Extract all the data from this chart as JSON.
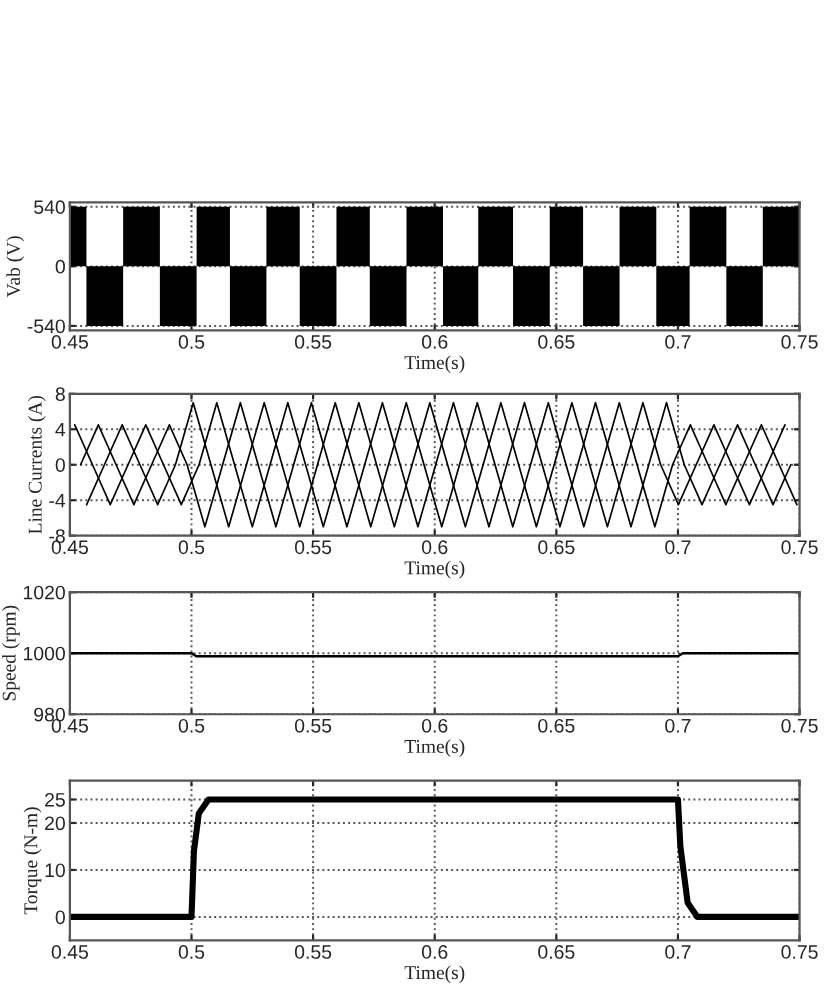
{
  "chart_data": [
    {
      "type": "area",
      "ylabel": "Vab (V)",
      "xlabel": "Time(s)",
      "xlim": [
        0.45,
        0.75
      ],
      "ylim": [
        -580,
        580
      ],
      "xticks": [
        0.45,
        0.5,
        0.55,
        0.6,
        0.65,
        0.7,
        0.75
      ],
      "yticks": [
        -540,
        0,
        540
      ],
      "grid": true,
      "series": [
        {
          "color": "#000000",
          "x": [
            0.45,
            0.4568,
            0.4568,
            0.4719,
            0.4719,
            0.487,
            0.487,
            0.5021,
            0.5021,
            0.5158,
            0.5158,
            0.5308,
            0.5308,
            0.5445,
            0.5445,
            0.5596,
            0.5596,
            0.5733,
            0.5733,
            0.5884,
            0.5884,
            0.6034,
            0.6034,
            0.6179,
            0.6179,
            0.6322,
            0.6322,
            0.6473,
            0.6473,
            0.661,
            0.661,
            0.676,
            0.676,
            0.6911,
            0.6911,
            0.7048,
            0.7048,
            0.7199,
            0.7199,
            0.7349,
            0.7349,
            0.75
          ],
          "values": [
            540,
            540,
            -540,
            -540,
            540,
            540,
            -540,
            -540,
            540,
            540,
            -540,
            -540,
            540,
            540,
            -540,
            -540,
            540,
            540,
            -540,
            -540,
            540,
            540,
            -540,
            -540,
            540,
            540,
            -540,
            -540,
            540,
            540,
            -540,
            -540,
            540,
            540,
            -540,
            -540,
            540,
            540,
            -540,
            -540,
            540,
            540
          ]
        }
      ]
    },
    {
      "type": "line",
      "ylabel": "Line Currents (A)",
      "xlabel": "Time(s)",
      "xlim": [
        0.45,
        0.75
      ],
      "ylim": [
        -8,
        8
      ],
      "xticks": [
        0.45,
        0.5,
        0.55,
        0.6,
        0.65,
        0.7,
        0.75
      ],
      "yticks": [
        -8,
        -4,
        0,
        4,
        8
      ],
      "grid": true,
      "series": [
        {
          "color": "#000000",
          "x": [
            0.452,
            0.4593,
            0.4666,
            0.4739,
            0.4812,
            0.4885,
            0.4958,
            0.5031,
            0.5104,
            0.5177,
            0.525,
            0.5323,
            0.5396,
            0.5469,
            0.5542,
            0.5615,
            0.5688,
            0.5761,
            0.5834,
            0.5907,
            0.598,
            0.6053,
            0.6126,
            0.6199,
            0.6272,
            0.6345,
            0.6418,
            0.6491,
            0.6564,
            0.6637,
            0.671,
            0.6783,
            0.6856,
            0.6929,
            0.7002,
            0.7075,
            0.7148,
            0.7221,
            0.7294,
            0.7367,
            0.744
          ],
          "values": [
            4.5,
            0,
            -4.5,
            0,
            4.5,
            0,
            -4.5,
            0,
            7,
            0,
            -7,
            0,
            7,
            0,
            -7,
            0,
            7,
            0,
            -7,
            0,
            7,
            0,
            -7,
            0,
            7,
            0,
            -7,
            0,
            7,
            0,
            -7,
            0,
            7,
            0,
            -4.5,
            0,
            4.5,
            0,
            -4.5,
            0,
            4.5
          ]
        },
        {
          "color": "#000000",
          "x": [
            0.4544,
            0.4617,
            0.469,
            0.4763,
            0.4836,
            0.4909,
            0.4982,
            0.5055,
            0.5128,
            0.5201,
            0.5274,
            0.5347,
            0.542,
            0.5493,
            0.5566,
            0.5639,
            0.5712,
            0.5785,
            0.5858,
            0.5931,
            0.6004,
            0.6077,
            0.615,
            0.6223,
            0.6296,
            0.6369,
            0.6442,
            0.6515,
            0.6588,
            0.6661,
            0.6734,
            0.6807,
            0.688,
            0.6953,
            0.7026,
            0.7099,
            0.7172,
            0.7245,
            0.7318,
            0.7391,
            0.7464
          ],
          "values": [
            0,
            4.5,
            0,
            -4.5,
            0,
            4.5,
            0,
            -7,
            0,
            7,
            0,
            -7,
            0,
            7,
            0,
            -7,
            0,
            7,
            0,
            -7,
            0,
            7,
            0,
            -7,
            0,
            7,
            0,
            -7,
            0,
            7,
            0,
            -7,
            0,
            7,
            0,
            -4.5,
            0,
            4.5,
            0,
            -4.5,
            0
          ]
        },
        {
          "color": "#000000",
          "x": [
            0.4569,
            0.4642,
            0.4715,
            0.4788,
            0.4861,
            0.4934,
            0.5007,
            0.508,
            0.5153,
            0.5226,
            0.5299,
            0.5372,
            0.5445,
            0.5518,
            0.5591,
            0.5664,
            0.5737,
            0.581,
            0.5883,
            0.5956,
            0.6029,
            0.6102,
            0.6175,
            0.6248,
            0.6321,
            0.6394,
            0.6467,
            0.654,
            0.6613,
            0.6686,
            0.6759,
            0.6832,
            0.6905,
            0.6978,
            0.7051,
            0.7124,
            0.7197,
            0.727,
            0.7343,
            0.7416,
            0.7489
          ],
          "values": [
            -4.5,
            0,
            4.5,
            0,
            -4.5,
            0,
            7,
            0,
            -7,
            0,
            7,
            0,
            -7,
            0,
            7,
            0,
            -7,
            0,
            7,
            0,
            -7,
            0,
            7,
            0,
            -7,
            0,
            7,
            0,
            -7,
            0,
            7,
            0,
            -7,
            0,
            4.5,
            0,
            -4.5,
            0,
            4.5,
            0,
            -4.5
          ]
        }
      ]
    },
    {
      "type": "line",
      "ylabel": "Speed (rpm)",
      "xlabel": "Time(s)",
      "xlim": [
        0.45,
        0.75
      ],
      "ylim": [
        980,
        1020
      ],
      "xticks": [
        0.45,
        0.5,
        0.55,
        0.6,
        0.65,
        0.7,
        0.75
      ],
      "yticks": [
        980,
        1000,
        1020
      ],
      "grid": true,
      "series": [
        {
          "color": "#000000",
          "x": [
            0.45,
            0.5,
            0.502,
            0.7,
            0.702,
            0.75
          ],
          "values": [
            1000,
            1000,
            999,
            999,
            1000,
            1000
          ]
        }
      ]
    },
    {
      "type": "line",
      "ylabel": "Torque (N-m)",
      "xlabel": "Time(s)",
      "xlim": [
        0.45,
        0.75
      ],
      "ylim": [
        -5,
        29
      ],
      "xticks": [
        0.45,
        0.5,
        0.55,
        0.6,
        0.65,
        0.7,
        0.75
      ],
      "yticks": [
        0,
        10,
        20,
        25
      ],
      "grid": true,
      "series": [
        {
          "color": "#000000",
          "x": [
            0.45,
            0.5,
            0.501,
            0.503,
            0.507,
            0.7,
            0.701,
            0.704,
            0.708,
            0.75
          ],
          "values": [
            0,
            0,
            14,
            22,
            25,
            25,
            15,
            3,
            0,
            0
          ]
        }
      ]
    }
  ]
}
